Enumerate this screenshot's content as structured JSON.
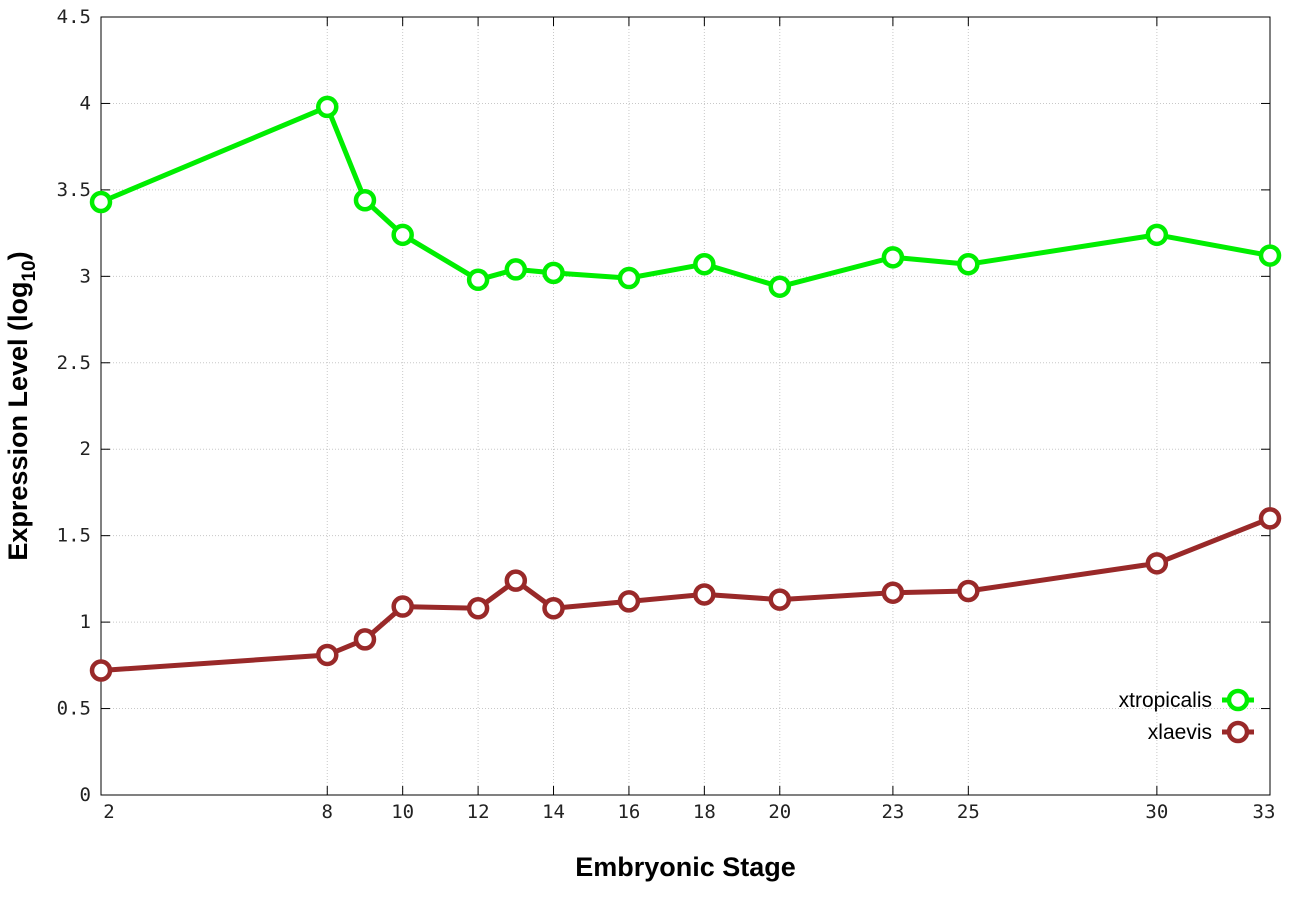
{
  "chart_data": {
    "type": "line",
    "xlabel": "Embryonic Stage",
    "ylabel": {
      "prefix": "Expression Level (log",
      "subscript": "10",
      "suffix": ")"
    },
    "xlim": [
      2,
      33
    ],
    "ylim": [
      0,
      4.5
    ],
    "x_ticks": [
      2,
      8,
      10,
      12,
      14,
      16,
      18,
      20,
      23,
      25,
      30,
      33
    ],
    "y_ticks": [
      {
        "value": 0,
        "label": "0"
      },
      {
        "value": 0.5,
        "label": "0.5"
      },
      {
        "value": 1,
        "label": "1"
      },
      {
        "value": 1.5,
        "label": "1.5"
      },
      {
        "value": 2,
        "label": "2"
      },
      {
        "value": 2.5,
        "label": "2.5"
      },
      {
        "value": 3,
        "label": "3"
      },
      {
        "value": 3.5,
        "label": "3.5"
      },
      {
        "value": 4,
        "label": "4"
      },
      {
        "value": 4.5,
        "label": "4.5"
      }
    ],
    "grid": true,
    "legend_position": "bottom-right",
    "x": [
      2,
      8,
      9,
      10,
      12,
      13,
      14,
      16,
      18,
      20,
      23,
      25,
      30,
      33
    ],
    "series": [
      {
        "name": "xtropicalis",
        "color": "#00ee00",
        "values": [
          3.43,
          3.98,
          3.44,
          3.24,
          2.98,
          3.04,
          3.02,
          2.99,
          3.07,
          2.94,
          3.11,
          3.07,
          3.24,
          3.12
        ]
      },
      {
        "name": "xlaevis",
        "color": "#992929",
        "values": [
          0.72,
          0.81,
          0.9,
          1.09,
          1.08,
          1.24,
          1.08,
          1.12,
          1.16,
          1.13,
          1.17,
          1.18,
          1.34,
          1.6
        ]
      }
    ]
  }
}
